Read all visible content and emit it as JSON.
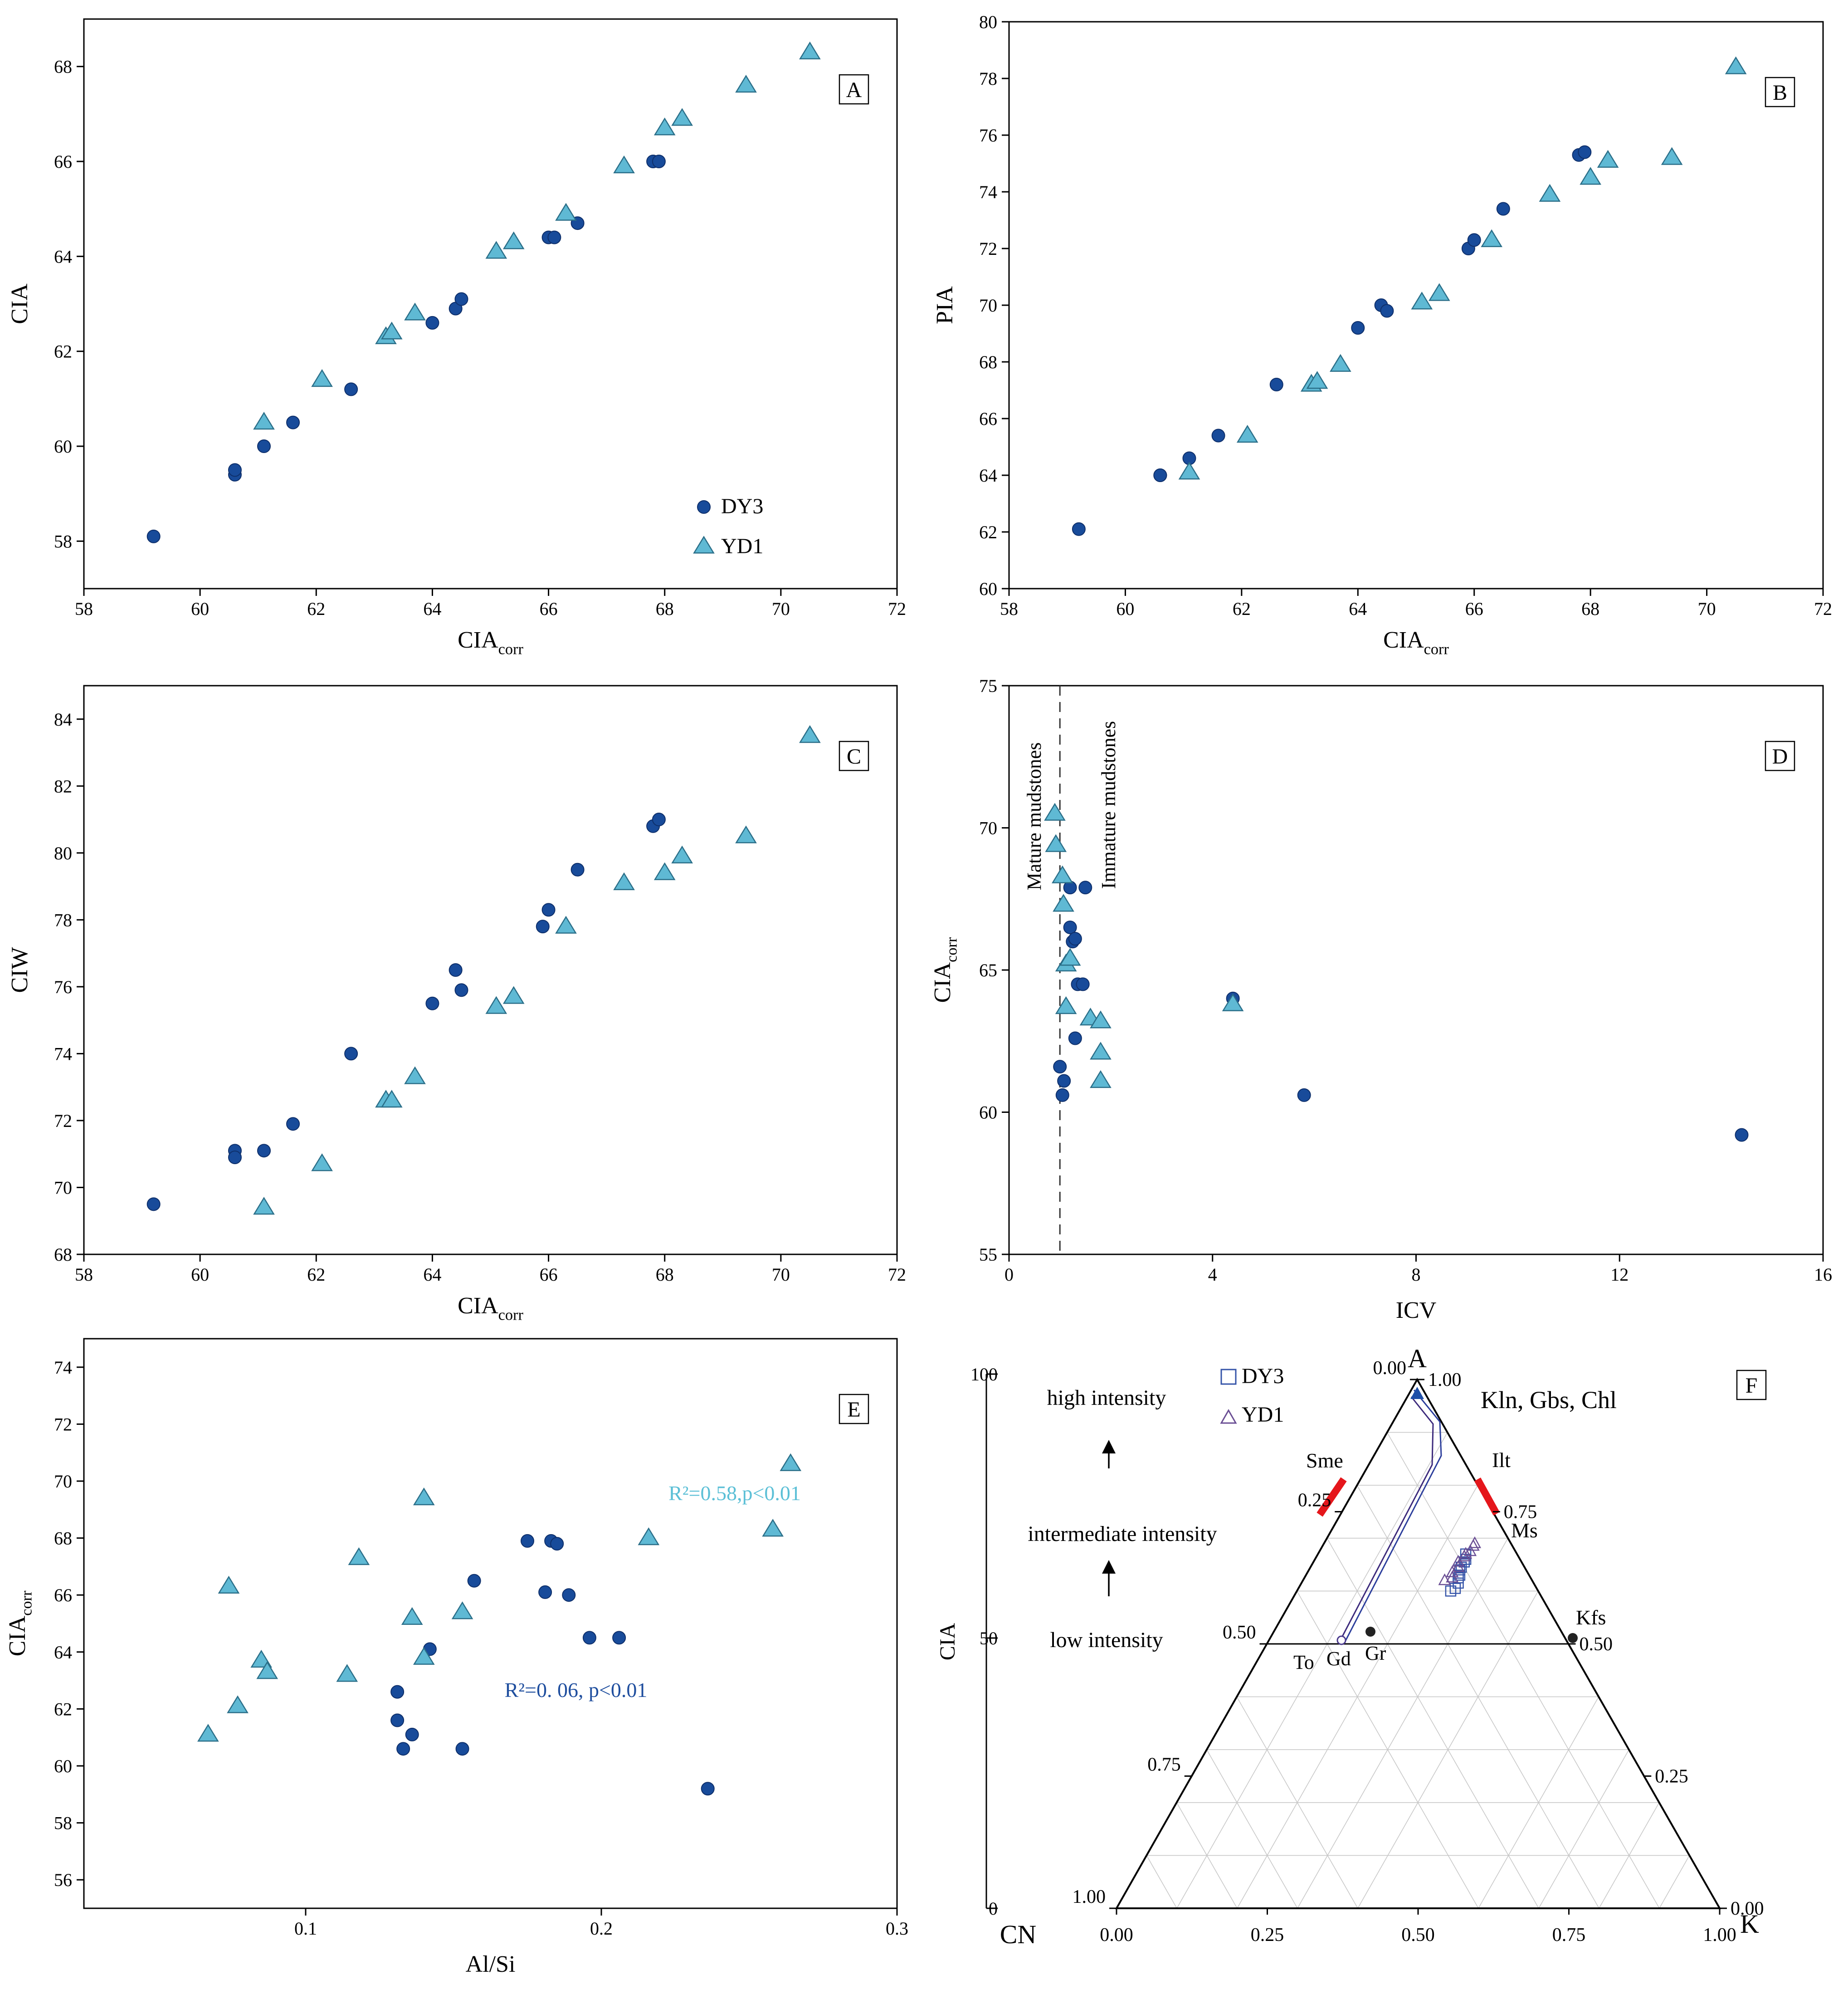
{
  "colors": {
    "dy3": "#184B9A",
    "yd1": "#5FB9D4",
    "yd1_edge": "#2A6E88",
    "axis": "#000000",
    "red": "#E5161B",
    "grid": "#C8C8C8",
    "dy3_label": "#1F4E9E",
    "yd1_label": "#5BBFD6"
  },
  "chart_data": [
    {
      "id": "A",
      "type": "scatter",
      "panel_label": "A",
      "xlabel_main": "CIA",
      "xlabel_sub": "corr",
      "ylabel": "CIA",
      "xlim": [
        58,
        72
      ],
      "ylim": [
        57,
        69
      ],
      "xticks": [
        "58",
        "60",
        "62",
        "64",
        "66",
        "68",
        "70",
        "72"
      ],
      "yticks": [
        "58",
        "60",
        "62",
        "64",
        "66",
        "68"
      ],
      "legend": {
        "position": "bottom-right",
        "entries": [
          "DY3",
          "YD1"
        ]
      },
      "series": [
        {
          "name": "DY3",
          "marker": "circle",
          "points": [
            [
              59.2,
              58.1
            ],
            [
              60.6,
              59.4
            ],
            [
              60.6,
              59.5
            ],
            [
              61.1,
              60.0
            ],
            [
              61.6,
              60.5
            ],
            [
              62.6,
              61.2
            ],
            [
              64.0,
              62.6
            ],
            [
              64.4,
              62.9
            ],
            [
              64.5,
              63.1
            ],
            [
              66.0,
              64.4
            ],
            [
              66.1,
              64.4
            ],
            [
              66.5,
              64.7
            ],
            [
              67.8,
              66.0
            ],
            [
              67.9,
              66.0
            ]
          ]
        },
        {
          "name": "YD1",
          "marker": "triangle",
          "points": [
            [
              61.1,
              60.5
            ],
            [
              62.1,
              61.4
            ],
            [
              63.2,
              62.3
            ],
            [
              63.3,
              62.4
            ],
            [
              63.7,
              62.8
            ],
            [
              65.1,
              64.1
            ],
            [
              65.4,
              64.3
            ],
            [
              66.3,
              64.9
            ],
            [
              67.3,
              65.9
            ],
            [
              68.0,
              66.7
            ],
            [
              68.3,
              66.9
            ],
            [
              69.4,
              67.6
            ],
            [
              70.5,
              68.3
            ]
          ]
        }
      ]
    },
    {
      "id": "B",
      "type": "scatter",
      "panel_label": "B",
      "xlabel_main": "CIA",
      "xlabel_sub": "corr",
      "ylabel": "PIA",
      "xlim": [
        58,
        72
      ],
      "ylim": [
        60,
        80
      ],
      "xticks": [
        "58",
        "60",
        "62",
        "64",
        "66",
        "68",
        "70",
        "72"
      ],
      "yticks": [
        "60",
        "62",
        "64",
        "66",
        "68",
        "70",
        "72",
        "74",
        "76",
        "78",
        "80"
      ],
      "series": [
        {
          "name": "DY3",
          "marker": "circle",
          "points": [
            [
              59.2,
              62.1
            ],
            [
              60.6,
              64.0
            ],
            [
              60.6,
              64.0
            ],
            [
              61.1,
              64.6
            ],
            [
              61.6,
              65.4
            ],
            [
              62.6,
              67.2
            ],
            [
              64.0,
              69.2
            ],
            [
              64.4,
              70.0
            ],
            [
              64.5,
              69.8
            ],
            [
              65.9,
              72.0
            ],
            [
              66.0,
              72.3
            ],
            [
              66.5,
              73.4
            ],
            [
              67.8,
              75.3
            ],
            [
              67.9,
              75.4
            ]
          ]
        },
        {
          "name": "YD1",
          "marker": "triangle",
          "points": [
            [
              61.1,
              64.1
            ],
            [
              62.1,
              65.4
            ],
            [
              63.2,
              67.2
            ],
            [
              63.3,
              67.3
            ],
            [
              63.7,
              67.9
            ],
            [
              65.1,
              70.1
            ],
            [
              65.4,
              70.4
            ],
            [
              66.3,
              72.3
            ],
            [
              67.3,
              73.9
            ],
            [
              68.0,
              74.5
            ],
            [
              68.3,
              75.1
            ],
            [
              69.4,
              75.2
            ],
            [
              70.5,
              78.4
            ]
          ]
        }
      ]
    },
    {
      "id": "C",
      "type": "scatter",
      "panel_label": "C",
      "xlabel_main": "CIA",
      "xlabel_sub": "corr",
      "ylabel": "CIW",
      "xlim": [
        58,
        72
      ],
      "ylim": [
        68,
        85
      ],
      "xticks": [
        "58",
        "60",
        "62",
        "64",
        "66",
        "68",
        "70",
        "72"
      ],
      "yticks": [
        "68",
        "70",
        "72",
        "74",
        "76",
        "78",
        "80",
        "82",
        "84"
      ],
      "series": [
        {
          "name": "DY3",
          "marker": "circle",
          "points": [
            [
              59.2,
              69.5
            ],
            [
              60.6,
              71.1
            ],
            [
              60.6,
              70.9
            ],
            [
              61.1,
              71.1
            ],
            [
              61.6,
              71.9
            ],
            [
              62.6,
              74.0
            ],
            [
              64.0,
              75.5
            ],
            [
              64.4,
              76.5
            ],
            [
              64.5,
              75.9
            ],
            [
              65.9,
              77.8
            ],
            [
              66.0,
              78.3
            ],
            [
              66.5,
              79.5
            ],
            [
              67.8,
              80.8
            ],
            [
              67.9,
              81.0
            ]
          ]
        },
        {
          "name": "YD1",
          "marker": "triangle",
          "points": [
            [
              61.1,
              69.4
            ],
            [
              62.1,
              70.7
            ],
            [
              63.2,
              72.6
            ],
            [
              63.3,
              72.6
            ],
            [
              63.7,
              73.3
            ],
            [
              65.1,
              75.4
            ],
            [
              65.4,
              75.7
            ],
            [
              66.3,
              77.8
            ],
            [
              67.3,
              79.1
            ],
            [
              68.0,
              79.4
            ],
            [
              68.3,
              79.9
            ],
            [
              69.4,
              80.5
            ],
            [
              70.5,
              83.5
            ]
          ]
        }
      ]
    },
    {
      "id": "D",
      "type": "scatter",
      "panel_label": "D",
      "xlabel": "ICV",
      "ylabel_main": "CIA",
      "ylabel_sub": "corr",
      "xlim": [
        0,
        16
      ],
      "ylim": [
        55,
        75
      ],
      "xticks": [
        "0",
        "4",
        "8",
        "12",
        "16"
      ],
      "yticks": [
        "55",
        "60",
        "65",
        "70",
        "75"
      ],
      "divider_x": 1.0,
      "annotations": [
        "Mature mudstones",
        "Immature mudstones"
      ],
      "series": [
        {
          "name": "DY3",
          "marker": "circle",
          "points": [
            [
              1.0,
              61.6
            ],
            [
              1.05,
              60.6
            ],
            [
              1.08,
              61.1
            ],
            [
              1.2,
              67.9
            ],
            [
              1.2,
              66.5
            ],
            [
              1.25,
              66.0
            ],
            [
              1.3,
              66.1
            ],
            [
              1.35,
              64.5
            ],
            [
              1.45,
              64.5
            ],
            [
              1.5,
              67.9
            ],
            [
              1.3,
              62.6
            ],
            [
              4.4,
              64.0
            ],
            [
              5.8,
              60.6
            ],
            [
              14.4,
              59.2
            ]
          ]
        },
        {
          "name": "YD1",
          "marker": "triangle",
          "points": [
            [
              0.9,
              70.5
            ],
            [
              0.92,
              69.4
            ],
            [
              1.05,
              68.3
            ],
            [
              1.07,
              67.3
            ],
            [
              1.12,
              65.2
            ],
            [
              1.2,
              65.4
            ],
            [
              1.12,
              63.7
            ],
            [
              1.6,
              63.3
            ],
            [
              1.8,
              63.2
            ],
            [
              1.8,
              62.1
            ],
            [
              1.8,
              61.1
            ],
            [
              4.4,
              63.8
            ]
          ]
        }
      ]
    },
    {
      "id": "E",
      "type": "scatter",
      "panel_label": "E",
      "xlabel": "Al/Si",
      "ylabel_main": "CIA",
      "ylabel_sub": "corr",
      "xlim": [
        0.025,
        0.3
      ],
      "ylim": [
        55,
        75
      ],
      "xticks": [
        "0.1",
        "0.2",
        "0.3"
      ],
      "yticks": [
        "56",
        "58",
        "60",
        "62",
        "64",
        "66",
        "68",
        "70",
        "72",
        "74"
      ],
      "annotations": [
        {
          "text": "R²=0.58,p<0.01",
          "series": "YD1"
        },
        {
          "text": "R²=0. 06, p<0.01",
          "series": "DY3"
        }
      ],
      "series": [
        {
          "name": "DY3",
          "marker": "circle",
          "points": [
            [
              0.175,
              67.9
            ],
            [
              0.183,
              67.9
            ],
            [
              0.185,
              67.8
            ],
            [
              0.157,
              66.5
            ],
            [
              0.181,
              66.1
            ],
            [
              0.189,
              66.0
            ],
            [
              0.196,
              64.5
            ],
            [
              0.206,
              64.5
            ],
            [
              0.142,
              64.1
            ],
            [
              0.131,
              62.6
            ],
            [
              0.131,
              61.6
            ],
            [
              0.136,
              61.1
            ],
            [
              0.133,
              60.6
            ],
            [
              0.153,
              60.6
            ],
            [
              0.236,
              59.2
            ]
          ]
        },
        {
          "name": "YD1",
          "marker": "triangle",
          "points": [
            [
              0.264,
              70.6
            ],
            [
              0.14,
              69.4
            ],
            [
              0.258,
              68.3
            ],
            [
              0.216,
              68.0
            ],
            [
              0.118,
              67.3
            ],
            [
              0.074,
              66.3
            ],
            [
              0.153,
              65.4
            ],
            [
              0.136,
              65.2
            ],
            [
              0.085,
              63.7
            ],
            [
              0.087,
              63.3
            ],
            [
              0.14,
              63.8
            ],
            [
              0.114,
              63.2
            ],
            [
              0.077,
              62.1
            ],
            [
              0.067,
              61.1
            ]
          ]
        }
      ]
    },
    {
      "id": "F",
      "type": "ternary",
      "panel_label": "F",
      "vertices": {
        "top": "A",
        "left": "CN",
        "right": "K"
      },
      "axis_label": "CIA",
      "cia_scale": [
        "100",
        "50",
        "0"
      ],
      "intensity_labels": [
        "high intensity",
        "intermediate intensity",
        "low intensity"
      ],
      "base_ticks": [
        "0.00",
        "0.25",
        "0.50",
        "0.75",
        "1.00"
      ],
      "right_ticks": [
        "1.00",
        "0.75",
        "0.50",
        "0.25",
        "0.00"
      ],
      "left_ticks": [
        "0.00",
        "0.25",
        "0.50",
        "0.75",
        "1.00"
      ],
      "minerals": [
        "Kln, Gbs, Chl",
        "Ilt",
        "Ms",
        "Sme",
        "Kfs",
        "To",
        "Gd",
        "Gr"
      ],
      "legend": {
        "position": "top-left",
        "entries": [
          "DY3",
          "YD1"
        ]
      },
      "series": [
        {
          "name": "DY3",
          "marker": "open-square",
          "points_ACNK": [
            [
              0.6,
              0.145,
              0.255
            ],
            [
              0.605,
              0.135,
              0.26
            ],
            [
              0.615,
              0.125,
              0.26
            ],
            [
              0.625,
              0.12,
              0.255
            ],
            [
              0.63,
              0.115,
              0.255
            ],
            [
              0.64,
              0.11,
              0.25
            ],
            [
              0.645,
              0.105,
              0.25
            ],
            [
              0.655,
              0.095,
              0.25
            ],
            [
              0.66,
              0.09,
              0.25
            ],
            [
              0.67,
              0.085,
              0.245
            ]
          ]
        },
        {
          "name": "YD1",
          "marker": "open-triangle",
          "points_ACNK": [
            [
              0.62,
              0.145,
              0.235
            ],
            [
              0.625,
              0.13,
              0.245
            ],
            [
              0.635,
              0.125,
              0.24
            ],
            [
              0.645,
              0.11,
              0.245
            ],
            [
              0.655,
              0.105,
              0.24
            ],
            [
              0.665,
              0.09,
              0.245
            ],
            [
              0.67,
              0.085,
              0.245
            ],
            [
              0.675,
              0.075,
              0.25
            ],
            [
              0.685,
              0.065,
              0.25
            ],
            [
              0.69,
              0.06,
              0.25
            ]
          ]
        }
      ]
    }
  ]
}
